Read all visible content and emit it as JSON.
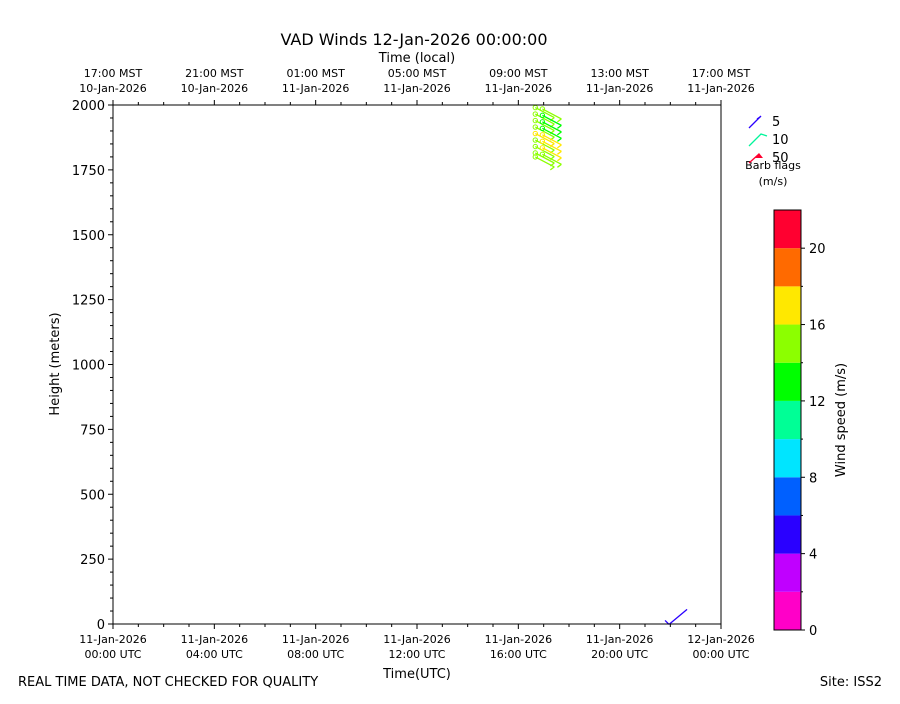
{
  "chart_data": {
    "type": "wind-barb",
    "title": "VAD Winds 12-Jan-2026 00:00:00",
    "xlabel_top": "Time (local)",
    "xlabel": "Time(UTC)",
    "ylabel": "Height (meters)",
    "ylim": [
      0,
      2000
    ],
    "xlim_hours_utc": [
      "11-Jan-2026 00:00",
      "12-Jan-2026 00:00"
    ],
    "yticks": [
      0,
      250,
      500,
      750,
      1000,
      1250,
      1500,
      1750,
      2000
    ],
    "xticks_utc": [
      {
        "t": 0,
        "line1": "11-Jan-2026",
        "line2": "00:00 UTC"
      },
      {
        "t": 4,
        "line1": "11-Jan-2026",
        "line2": "04:00 UTC"
      },
      {
        "t": 8,
        "line1": "11-Jan-2026",
        "line2": "08:00 UTC"
      },
      {
        "t": 12,
        "line1": "11-Jan-2026",
        "line2": "12:00 UTC"
      },
      {
        "t": 16,
        "line1": "11-Jan-2026",
        "line2": "16:00 UTC"
      },
      {
        "t": 20,
        "line1": "11-Jan-2026",
        "line2": "20:00 UTC"
      },
      {
        "t": 24,
        "line1": "12-Jan-2026",
        "line2": "00:00 UTC"
      }
    ],
    "xticks_local": [
      {
        "t": 0,
        "line1": "17:00 MST",
        "line2": "10-Jan-2026"
      },
      {
        "t": 4,
        "line1": "21:00 MST",
        "line2": "10-Jan-2026"
      },
      {
        "t": 8,
        "line1": "01:00 MST",
        "line2": "11-Jan-2026"
      },
      {
        "t": 12,
        "line1": "05:00 MST",
        "line2": "11-Jan-2026"
      },
      {
        "t": 16,
        "line1": "09:00 MST",
        "line2": "11-Jan-2026"
      },
      {
        "t": 20,
        "line1": "13:00 MST",
        "line2": "11-Jan-2026"
      },
      {
        "t": 24,
        "line1": "17:00 MST",
        "line2": "11-Jan-2026"
      }
    ],
    "barbs": [
      {
        "t": 16.67,
        "h": 1990,
        "speed": 15.5
      },
      {
        "t": 16.67,
        "h": 1965,
        "speed": 15.0
      },
      {
        "t": 16.67,
        "h": 1940,
        "speed": 15.2
      },
      {
        "t": 16.67,
        "h": 1915,
        "speed": 15.8
      },
      {
        "t": 16.67,
        "h": 1890,
        "speed": 16.2
      },
      {
        "t": 16.67,
        "h": 1865,
        "speed": 15.4
      },
      {
        "t": 16.67,
        "h": 1840,
        "speed": 15.6
      },
      {
        "t": 16.67,
        "h": 1815,
        "speed": 15.0
      },
      {
        "t": 16.67,
        "h": 1800,
        "speed": 14.8
      },
      {
        "t": 16.95,
        "h": 1985,
        "speed": 14.0
      },
      {
        "t": 16.95,
        "h": 1960,
        "speed": 13.8
      },
      {
        "t": 16.95,
        "h": 1935,
        "speed": 13.2
      },
      {
        "t": 16.95,
        "h": 1910,
        "speed": 13.6
      },
      {
        "t": 16.95,
        "h": 1885,
        "speed": 16.5
      },
      {
        "t": 16.95,
        "h": 1860,
        "speed": 16.9
      },
      {
        "t": 16.95,
        "h": 1835,
        "speed": 16.2
      },
      {
        "t": 16.95,
        "h": 1810,
        "speed": 15.8
      },
      {
        "t": 21.95,
        "h": 10,
        "speed": 4.2
      }
    ],
    "barb_legend": {
      "entries": [
        {
          "value": "5",
          "color": "#2a00ff"
        },
        {
          "value": "10",
          "color": "#00f59a"
        },
        {
          "value": "50",
          "color": "#ff0030"
        }
      ],
      "title_line1": "Barb flags",
      "title_line2": "(m/s)"
    },
    "colorbar": {
      "label": "Wind speed (m/s)",
      "ticks": [
        0,
        4,
        8,
        12,
        16,
        20
      ],
      "range": [
        0,
        22
      ],
      "colors": [
        "#ff00c8",
        "#c000ff",
        "#2a00ff",
        "#0060ff",
        "#00e5ff",
        "#00ff96",
        "#00ff00",
        "#8cff00",
        "#ffe800",
        "#ff6a00",
        "#ff0030"
      ]
    },
    "grid": false
  },
  "footer": {
    "left": "REAL TIME DATA, NOT CHECKED FOR QUALITY",
    "right": "Site: ISS2"
  }
}
